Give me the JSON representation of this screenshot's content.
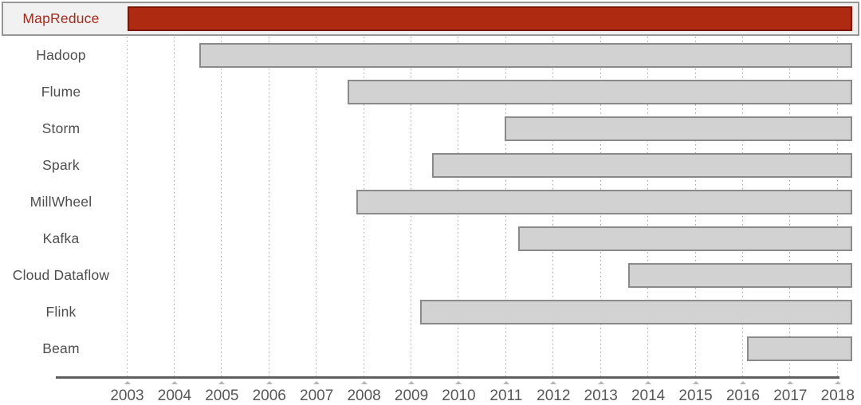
{
  "chart_data": {
    "type": "bar",
    "subtype": "gantt-timeline",
    "title": "",
    "xlabel": "",
    "ylabel": "",
    "x_axis": {
      "tick_labels": [
        "2003",
        "2004",
        "2005",
        "2006",
        "2007",
        "2008",
        "2009",
        "2010",
        "2011",
        "2012",
        "2013",
        "2014",
        "2015",
        "2016",
        "2017",
        "2018"
      ],
      "tick_values": [
        2003,
        2004,
        2005,
        2006,
        2007,
        2008,
        2009,
        2010,
        2011,
        2012,
        2013,
        2014,
        2015,
        2016,
        2017,
        2018
      ],
      "axis_line_year_range": [
        2001.5,
        2018.04
      ],
      "grid": "dotted-vertical"
    },
    "ylim_rows": 10,
    "rows": [
      {
        "label": "MapReduce",
        "start": 2003.0,
        "end": 2018.3,
        "highlighted": true
      },
      {
        "label": "Hadoop",
        "start": 2004.53,
        "end": 2018.3,
        "highlighted": false
      },
      {
        "label": "Flume",
        "start": 2007.66,
        "end": 2018.3,
        "highlighted": false
      },
      {
        "label": "Storm",
        "start": 2010.97,
        "end": 2018.3,
        "highlighted": false
      },
      {
        "label": "Spark",
        "start": 2009.43,
        "end": 2018.3,
        "highlighted": false
      },
      {
        "label": "MillWheel",
        "start": 2007.84,
        "end": 2018.3,
        "highlighted": false
      },
      {
        "label": "Kafka",
        "start": 2011.26,
        "end": 2018.3,
        "highlighted": false
      },
      {
        "label": "Cloud Dataflow",
        "start": 2013.57,
        "end": 2018.3,
        "highlighted": false
      },
      {
        "label": "Flink",
        "start": 2009.18,
        "end": 2018.3,
        "highlighted": false
      },
      {
        "label": "Beam",
        "start": 2016.08,
        "end": 2018.3,
        "highlighted": false
      }
    ],
    "legend": null
  },
  "colors": {
    "highlight_bar_fill": "#ae2a11",
    "highlight_bar_border": "#7b1605",
    "highlight_label_text": "#a8281a",
    "highlight_row_fill": "#f1f1f1",
    "highlight_row_border": "#979797",
    "bar_fill": "#d2d2d2",
    "bar_border": "#8a8a8a",
    "row_label_text": "#4e4e4e",
    "tick_label_text": "#575757",
    "axis_line": "#5f5f5f",
    "gridline": "#a3a3a3",
    "tick_mark": "#b5b5b5"
  }
}
